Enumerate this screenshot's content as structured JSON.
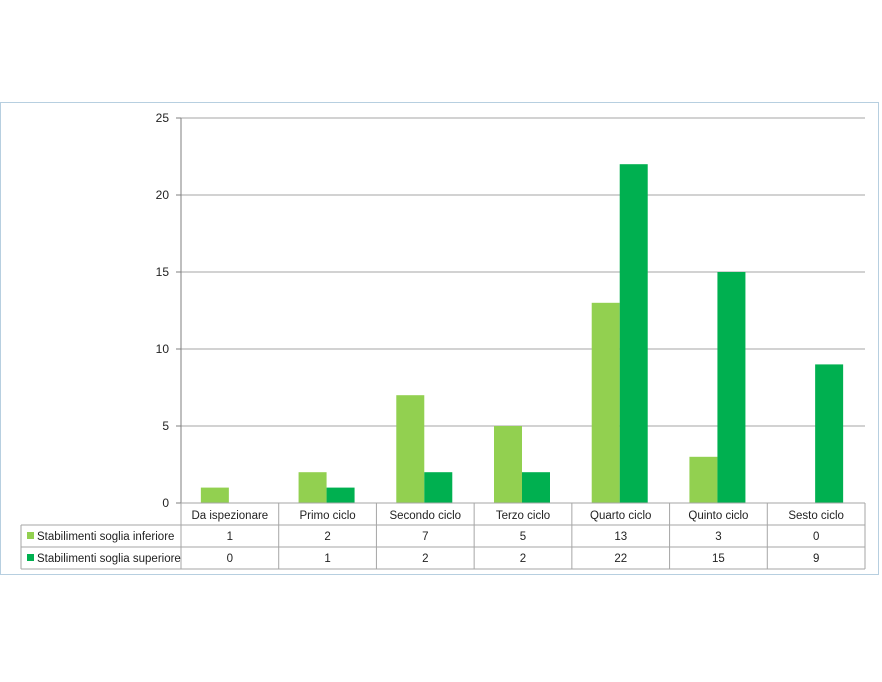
{
  "chart_data": {
    "type": "bar",
    "title": "",
    "xlabel": "",
    "ylabel": "",
    "ylim": [
      0,
      25
    ],
    "yticks": [
      0,
      5,
      10,
      15,
      20,
      25
    ],
    "grid": true,
    "legend": "data-table-left",
    "categories": [
      "Da ispezionare",
      "Primo ciclo",
      "Secondo ciclo",
      "Terzo ciclo",
      "Quarto ciclo",
      "Quinto ciclo",
      "Sesto ciclo"
    ],
    "series": [
      {
        "name": "Stabilimenti soglia inferiore",
        "color": "#92d050",
        "values": [
          1,
          2,
          7,
          5,
          13,
          3,
          0
        ]
      },
      {
        "name": "Stabilimenti soglia superiore",
        "color": "#00b050",
        "values": [
          0,
          1,
          2,
          2,
          22,
          15,
          9
        ]
      }
    ]
  }
}
